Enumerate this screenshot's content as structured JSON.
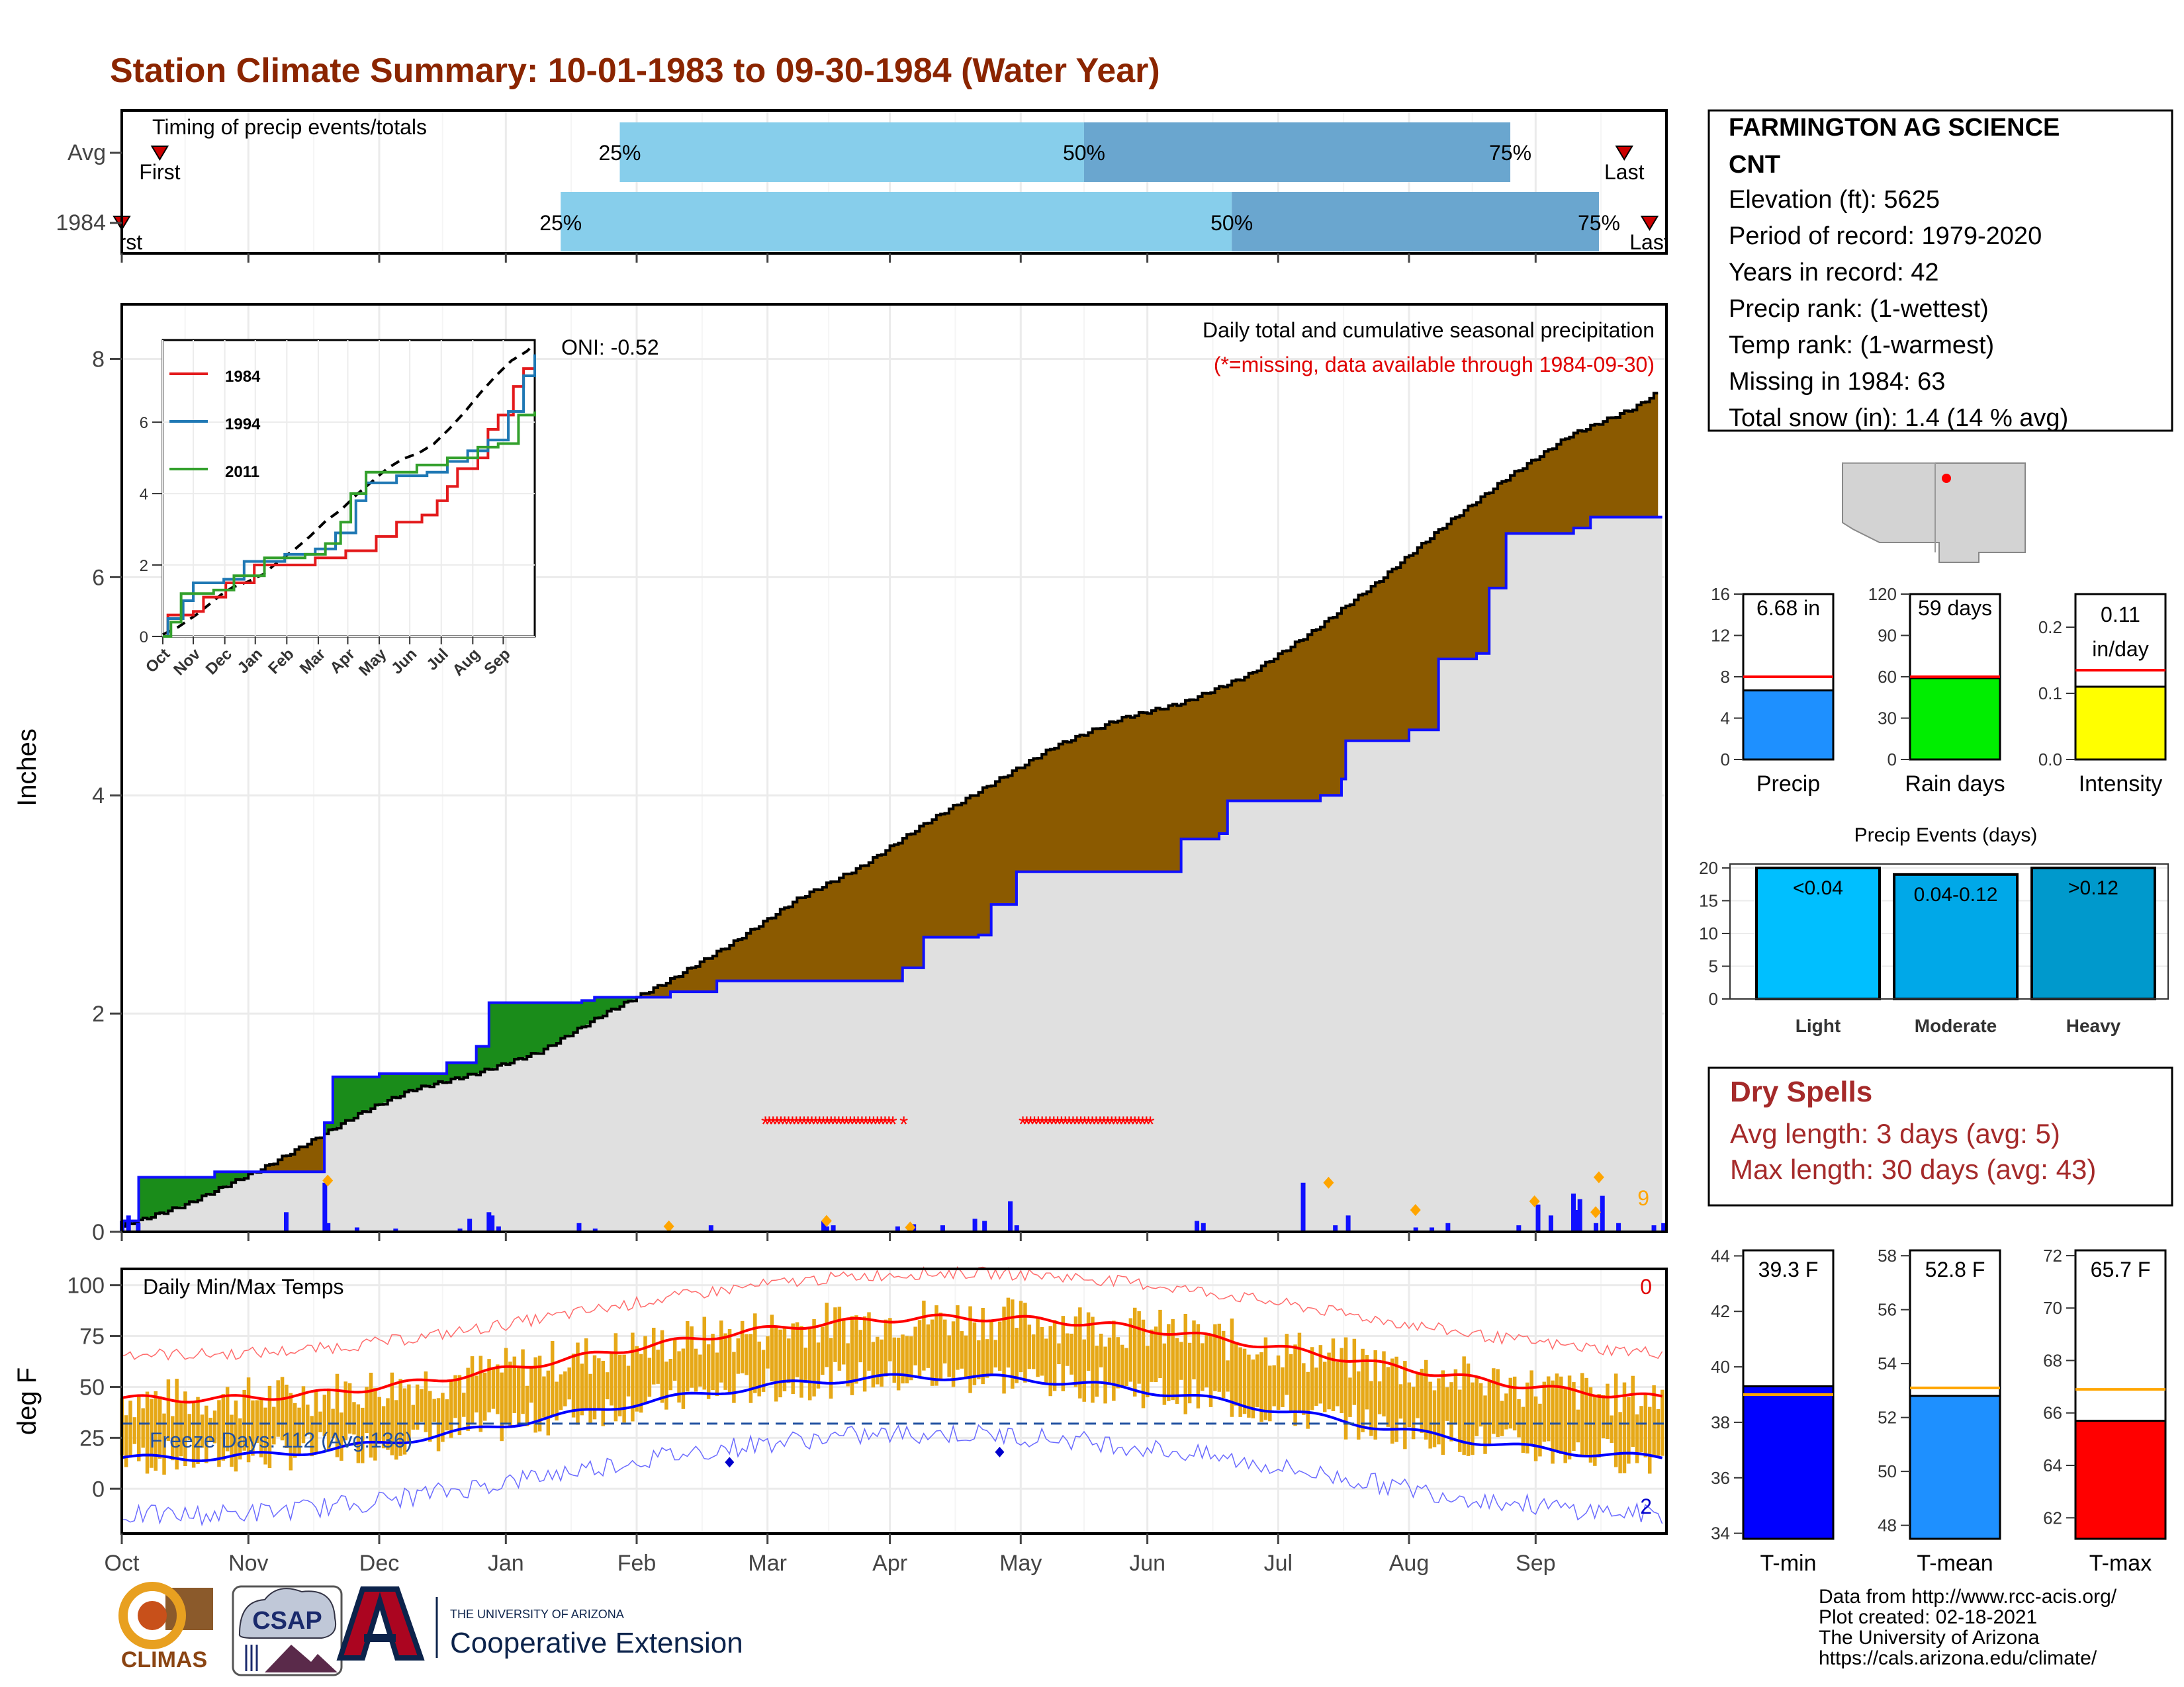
{
  "title": "Station Climate Summary: 10-01-1983 to 09-30-1984 (Water Year)",
  "timing": {
    "label": "Timing of precip events/totals",
    "rows": [
      {
        "name": "Avg",
        "first_label": "First",
        "last_label": "Last",
        "p25_label": "25%",
        "p50_label": "50%",
        "p75_label": "75%",
        "first_day": 9,
        "p25_day": 118,
        "p50_day": 228,
        "p75_day": 329,
        "last_day": 356
      },
      {
        "name": "1984",
        "first_label": "First",
        "last_label": "Last",
        "p25_label": "25%",
        "p50_label": "50%",
        "p75_label": "75%",
        "first_day": 0,
        "p25_day": 104,
        "p50_day": 263,
        "p75_day": 350,
        "last_day": 362
      }
    ]
  },
  "station": {
    "name": "FARMINGTON AG SCIENCE",
    "name2": "CNT",
    "elevation": "Elevation (ft): 5625",
    "period": "Period of record: 1979-2020",
    "years": "Years in record: 42",
    "precip_rank": "Precip rank:  (1-wettest)",
    "temp_rank": "Temp rank:  (1-warmest)",
    "missing": "Missing in 1984: 63",
    "snow": "Total snow (in): 1.4 (14 % avg)"
  },
  "precip_panel": {
    "ylabel": "Inches",
    "title": "Daily total and cumulative seasonal precipitation",
    "subtitle": "(*=missing, data available through 1984-09-30)",
    "oni": "ONI: -0.52",
    "right_count": "9",
    "yticks": [
      "0",
      "2",
      "4",
      "6",
      "8"
    ]
  },
  "chart_data": {
    "type": "area",
    "x_unit": "day of water year (0 = Oct 1)",
    "ylim": [
      0,
      8.5
    ],
    "cumulative_avg": [
      [
        0,
        0.05
      ],
      [
        20,
        0.25
      ],
      [
        45,
        0.6
      ],
      [
        60,
        0.85
      ],
      [
        75,
        1.1
      ],
      [
        90,
        1.3
      ],
      [
        110,
        1.45
      ],
      [
        130,
        1.65
      ],
      [
        150,
        2.0
      ],
      [
        170,
        2.3
      ],
      [
        190,
        2.65
      ],
      [
        210,
        3.05
      ],
      [
        230,
        3.35
      ],
      [
        250,
        3.75
      ],
      [
        270,
        4.1
      ],
      [
        290,
        4.45
      ],
      [
        310,
        4.7
      ],
      [
        330,
        4.85
      ],
      [
        350,
        5.1
      ],
      [
        370,
        5.5
      ],
      [
        390,
        5.95
      ],
      [
        410,
        6.45
      ],
      [
        430,
        6.9
      ],
      [
        450,
        7.3
      ],
      [
        470,
        7.55
      ],
      [
        480,
        7.75
      ]
    ],
    "cumulative_1984": [
      [
        0,
        0.1
      ],
      [
        5,
        0.5
      ],
      [
        28,
        0.55
      ],
      [
        62,
        0.55
      ],
      [
        62,
        1.0
      ],
      [
        65,
        1.42
      ],
      [
        80,
        1.45
      ],
      [
        100,
        1.55
      ],
      [
        110,
        1.7
      ],
      [
        114,
        2.1
      ],
      [
        142,
        2.12
      ],
      [
        146,
        2.15
      ],
      [
        170,
        2.2
      ],
      [
        184,
        2.3
      ],
      [
        238,
        2.3
      ],
      [
        242,
        2.42
      ],
      [
        248,
        2.7
      ],
      [
        266,
        2.72
      ],
      [
        270,
        3.0
      ],
      [
        278,
        3.3
      ],
      [
        320,
        3.3
      ],
      [
        328,
        3.6
      ],
      [
        340,
        3.65
      ],
      [
        343,
        3.95
      ],
      [
        372,
        4.0
      ],
      [
        378,
        4.15
      ],
      [
        380,
        4.5
      ],
      [
        400,
        4.6
      ],
      [
        408,
        5.25
      ],
      [
        420,
        5.3
      ],
      [
        424,
        5.9
      ],
      [
        430,
        6.4
      ],
      [
        450,
        6.45
      ],
      [
        456,
        6.55
      ],
      [
        476,
        6.55
      ],
      [
        478,
        6.68
      ],
      [
        480,
        6.68
      ]
    ],
    "daily_precip_days": [
      0,
      2,
      5,
      51,
      63,
      64,
      73,
      85,
      105,
      108,
      114,
      115,
      117,
      142,
      147,
      183,
      218,
      219,
      221,
      241,
      246,
      255,
      265,
      268,
      276,
      278,
      334,
      336,
      367,
      377,
      381,
      402,
      407,
      412,
      434,
      440,
      444,
      451,
      452,
      453,
      458,
      460,
      465,
      476,
      479
    ],
    "daily_precip_values": [
      0.1,
      0.15,
      0.08,
      0.18,
      0.45,
      0.08,
      0.04,
      0.03,
      0.03,
      0.12,
      0.18,
      0.15,
      0.05,
      0.08,
      0.03,
      0.06,
      0.1,
      0.05,
      0.06,
      0.05,
      0.07,
      0.06,
      0.12,
      0.1,
      0.28,
      0.06,
      0.1,
      0.08,
      0.45,
      0.06,
      0.15,
      0.04,
      0.04,
      0.08,
      0.06,
      0.25,
      0.15,
      0.35,
      0.2,
      0.3,
      0.08,
      0.33,
      0.08,
      0.06,
      0.08
    ],
    "missing_ranges": [
      [
        200,
        240
      ],
      [
        243,
        243
      ],
      [
        280,
        320
      ]
    ],
    "months": [
      "Oct",
      "Nov",
      "Dec",
      "Jan",
      "Feb",
      "Mar",
      "Apr",
      "May",
      "Jun",
      "Jul",
      "Aug",
      "Sep"
    ],
    "month_starts": [
      0,
      30,
      61,
      91,
      122,
      153,
      182,
      213,
      243,
      274,
      305,
      335
    ]
  },
  "inset": {
    "legend": [
      "1984",
      "1994",
      "2011"
    ],
    "colors": [
      "#e31a1c",
      "#1f78b4",
      "#33a02c"
    ],
    "yticks": [
      "0",
      "2",
      "4",
      "6"
    ],
    "months": [
      "Oct",
      "Nov",
      "Dec",
      "Jan",
      "Feb",
      "Mar",
      "Apr",
      "May",
      "Jun",
      "Jul",
      "Aug",
      "Sep"
    ]
  },
  "bar_stats": [
    {
      "label": "Precip",
      "value_text": "6.68 in",
      "ymax": 16,
      "yticks": [
        "0",
        "4",
        "8",
        "12",
        "16"
      ],
      "value": 6.68,
      "avg": 8.0,
      "color": "#1e90ff"
    },
    {
      "label": "Rain days",
      "value_text": "59 days",
      "ymax": 120,
      "yticks": [
        "0",
        "30",
        "60",
        "90",
        "120"
      ],
      "value": 59,
      "avg": 60,
      "color": "#00ee00"
    },
    {
      "label": "Intensity",
      "value_text": "0.11 in/day",
      "value_line1": "0.11",
      "value_line2": "in/day",
      "ymax": 0.25,
      "yticks": [
        "0.0",
        "0.1",
        "0.2"
      ],
      "value": 0.11,
      "avg": 0.135,
      "color": "#ffff00"
    }
  ],
  "events": {
    "title": "Precip Events (days)",
    "yticks": [
      "0",
      "5",
      "10",
      "15",
      "20"
    ],
    "bars": [
      {
        "label": "Light",
        "text": "<0.04",
        "value": 20,
        "color": "#00bfff"
      },
      {
        "label": "Moderate",
        "text": "0.04-0.12",
        "value": 19,
        "color": "#00a8e8"
      },
      {
        "label": "Heavy",
        "text": ">0.12",
        "value": 20,
        "color": "#0099cc"
      }
    ]
  },
  "dry_spells": {
    "title": "Dry Spells",
    "avg": "Avg length: 3 days (avg: 5)",
    "max": "Max length: 30 days (avg: 43)"
  },
  "temp_panel": {
    "ylabel": "deg F",
    "title": "Daily Min/Max Temps",
    "freeze": "Freeze Days: 112 (Avg:136)",
    "top_count": "0",
    "bottom_count": "2",
    "yticks": [
      "0",
      "25",
      "50",
      "75",
      "100"
    ]
  },
  "temp_stats": [
    {
      "label": "T-min",
      "value_text": "39.3 F",
      "ymin": 33.8,
      "ymax": 44.2,
      "yticks": [
        "34",
        "36",
        "38",
        "40",
        "42",
        "44"
      ],
      "value": 39.3,
      "avg": 39.0,
      "color": "#0000ff"
    },
    {
      "label": "T-mean",
      "value_text": "52.8 F",
      "ymin": 47.5,
      "ymax": 58.2,
      "yticks": [
        "48",
        "50",
        "52",
        "54",
        "56",
        "58"
      ],
      "value": 52.8,
      "avg": 53.1,
      "color": "#1e90ff"
    },
    {
      "label": "T-max",
      "value_text": "65.7 F",
      "ymin": 61.2,
      "ymax": 72.2,
      "yticks": [
        "62",
        "64",
        "66",
        "68",
        "70",
        "72"
      ],
      "value": 65.7,
      "avg": 66.9,
      "color": "#ff0000"
    }
  ],
  "footer": {
    "line1": "Data from http://www.rcc-acis.org/",
    "line2": "Plot created: 02-18-2021",
    "line3": "The University of Arizona",
    "line4": "https://cals.arizona.edu/climate/",
    "climas": "CLIMAS",
    "csap": "CSAP",
    "ua_small": "THE UNIVERSITY OF ARIZONA",
    "ua_big": "Cooperative Extension"
  }
}
